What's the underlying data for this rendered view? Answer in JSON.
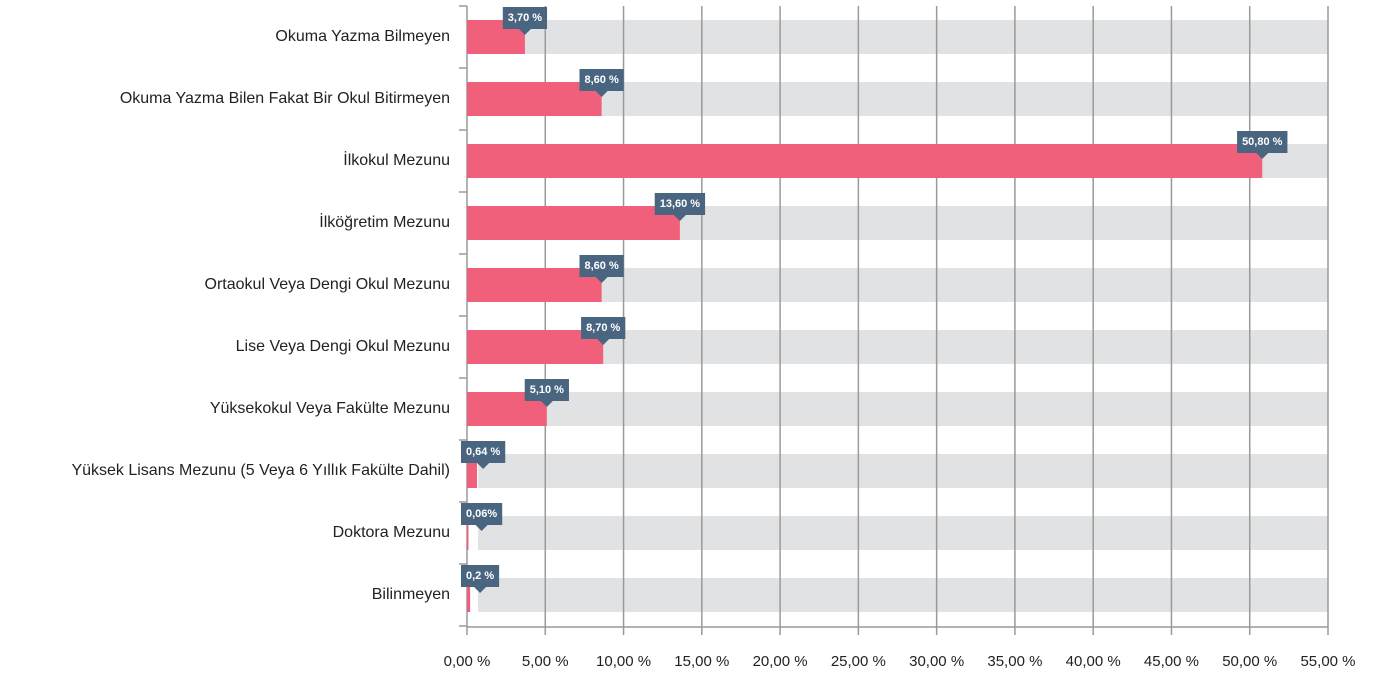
{
  "chart_data": {
    "type": "bar",
    "orientation": "horizontal",
    "categories": [
      "Okuma Yazma Bilmeyen",
      "Okuma Yazma Bilen Fakat Bir Okul Bitirmeyen",
      "İlkokul Mezunu",
      "İlköğretim Mezunu",
      "Ortaokul Veya Dengi Okul Mezunu",
      "Lise Veya Dengi Okul Mezunu",
      "Yüksekokul Veya Fakülte Mezunu",
      "Yüksek Lisans Mezunu (5 Veya 6 Yıllık Fakülte Dahil)",
      "Doktora Mezunu",
      "Bilinmeyen"
    ],
    "values": [
      3.7,
      8.6,
      50.8,
      13.6,
      8.6,
      8.7,
      5.1,
      0.64,
      0.06,
      0.2
    ],
    "value_labels": [
      "3,70 %",
      "8,60 %",
      "50,80 %",
      "13,60 %",
      "8,60 %",
      "8,70 %",
      "5,10 %",
      "0,64 %",
      "0,06%",
      "0,2 %"
    ],
    "color": "#f0607a",
    "background_color": "#e1e2e4",
    "label_color": "#4a6580",
    "xlim": [
      0,
      55
    ],
    "xticks": [
      {
        "value": 0,
        "label": "0,00 %"
      },
      {
        "value": 5,
        "label": "5,00 %"
      },
      {
        "value": 10,
        "label": "10,00 %"
      },
      {
        "value": 15,
        "label": "15,00 %"
      },
      {
        "value": 20,
        "label": "20,00 %"
      },
      {
        "value": 25,
        "label": "25,00 %"
      },
      {
        "value": 30,
        "label": "30,00 %"
      },
      {
        "value": 35,
        "label": "35,00 %"
      },
      {
        "value": 40,
        "label": "40,00 %"
      },
      {
        "value": 45,
        "label": "45,00 %"
      },
      {
        "value": 50,
        "label": "50,00 %"
      },
      {
        "value": 55,
        "label": "55,00 %"
      }
    ],
    "grid": true
  }
}
